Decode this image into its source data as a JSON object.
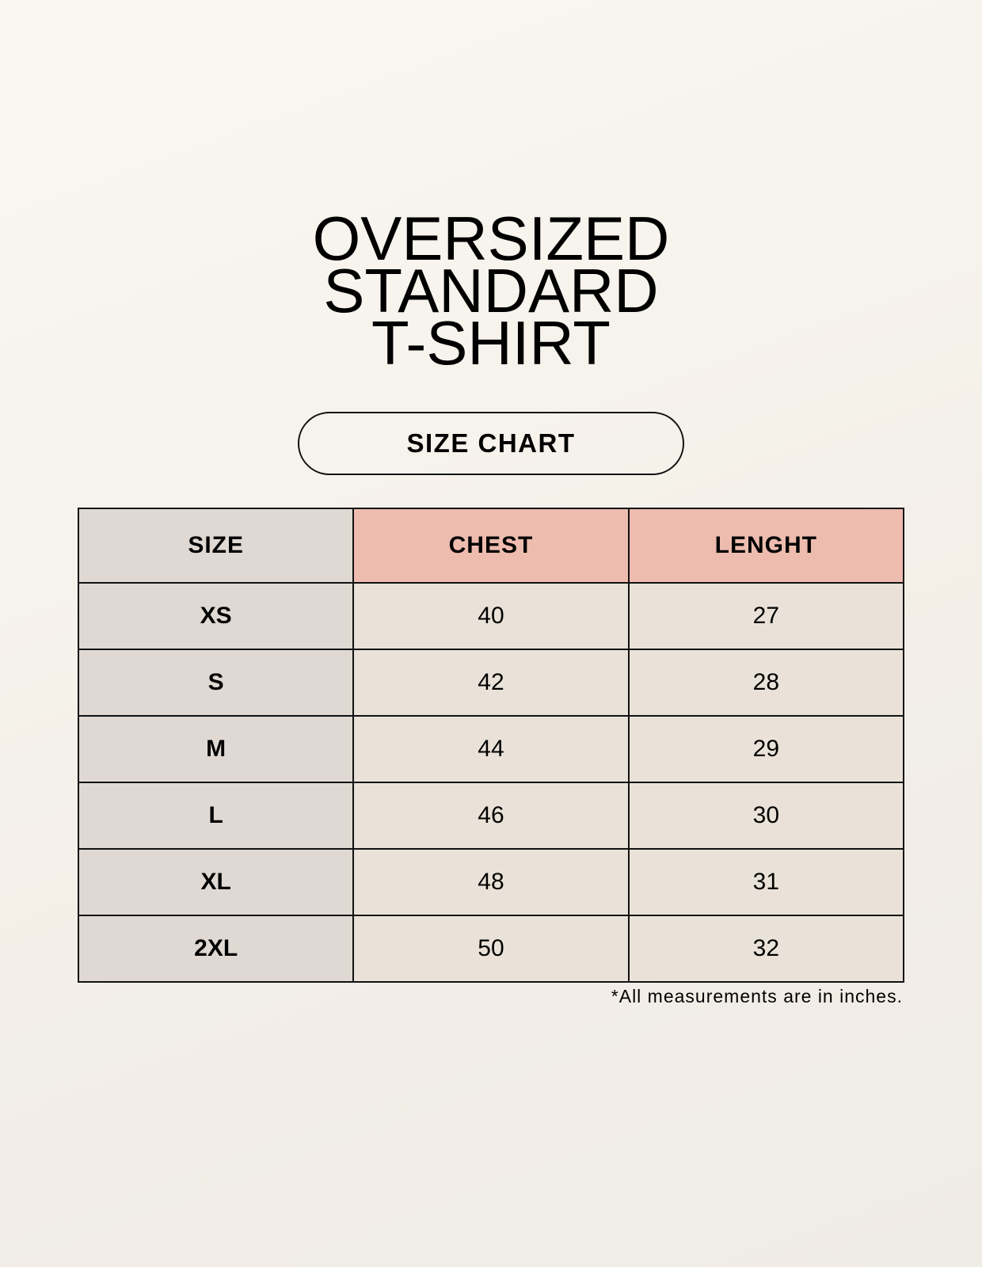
{
  "title": {
    "lines": [
      "OVERSIZED",
      "STANDARD",
      "T-SHIRT"
    ]
  },
  "badge": "SIZE CHART",
  "table": {
    "headers": [
      "SIZE",
      "CHEST",
      "LENGHT"
    ],
    "rows": [
      [
        "XS",
        "40",
        "27"
      ],
      [
        "S",
        "42",
        "28"
      ],
      [
        "M",
        "44",
        "29"
      ],
      [
        "L",
        "46",
        "30"
      ],
      [
        "XL",
        "48",
        "31"
      ],
      [
        "2XL",
        "50",
        "32"
      ]
    ]
  },
  "note": "*All measurements are in inches.",
  "colors": {
    "size_column": "#e0d9d3",
    "header_accent": "#edbcae",
    "cell": "#eae2d8"
  }
}
